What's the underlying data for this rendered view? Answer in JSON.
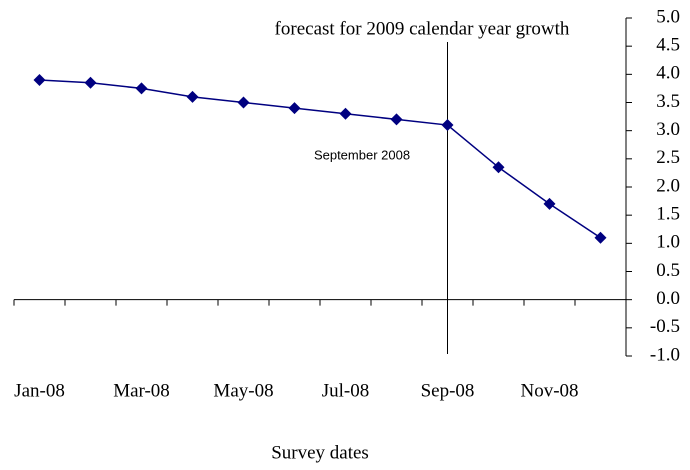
{
  "chart_data": {
    "type": "line",
    "x_label": "Survey dates",
    "annotations": [
      "forecast for 2009 calendar year growth",
      "September 2008"
    ],
    "categories": [
      "Jan-08",
      null,
      "Mar-08",
      null,
      "May-08",
      null,
      "Jul-08",
      null,
      "Sep-08",
      null,
      "Nov-08",
      null
    ],
    "series": [
      {
        "color": "#000080",
        "values": [
          3.9,
          3.85,
          3.75,
          3.6,
          3.5,
          3.4,
          3.3,
          3.2,
          3.1,
          2.35,
          1.7,
          1.1
        ]
      }
    ],
    "ylim": [
      -1.0,
      5.0
    ],
    "yticks": [
      {
        "value": -1.0,
        "label": "-1.0"
      },
      {
        "value": -0.5,
        "label": "-0.5"
      },
      {
        "value": 0,
        "label": "0.0"
      },
      {
        "value": 0.5,
        "label": "0.5"
      },
      {
        "value": 1.0,
        "label": "1.0"
      },
      {
        "value": 1.5,
        "label": "1.5"
      },
      {
        "value": 2.0,
        "label": "2.0"
      },
      {
        "value": 2.5,
        "label": "2.5"
      },
      {
        "value": 3.0,
        "label": "3.0"
      },
      {
        "value": 3.5,
        "label": "3.5"
      },
      {
        "value": 4.0,
        "label": "4.0"
      },
      {
        "value": 4.5,
        "label": "4.5"
      },
      {
        "value": 5.0,
        "label": "5.0"
      }
    ]
  }
}
